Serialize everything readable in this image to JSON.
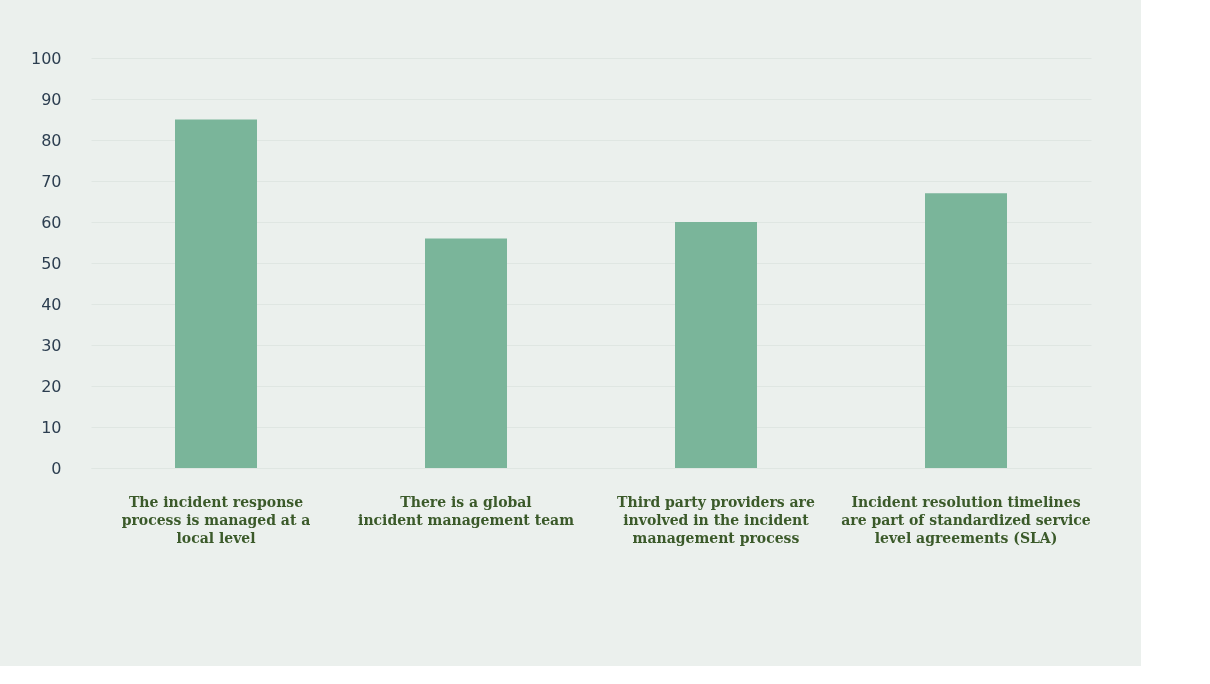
{
  "chart_data": {
    "type": "bar",
    "categories": [
      "The incident response process is managed at a local level",
      "There is a global incident management team",
      "Third party providers are involved in the incident management process",
      "Incident resolution timelines are part of standardized service level agreements (SLA)"
    ],
    "values": [
      85,
      56,
      60,
      67
    ],
    "color": "#7ab59a",
    "ylim": [
      0,
      100
    ],
    "yticks": [
      0,
      10,
      20,
      30,
      40,
      50,
      60,
      70,
      80,
      90,
      100
    ],
    "grid": "y"
  }
}
